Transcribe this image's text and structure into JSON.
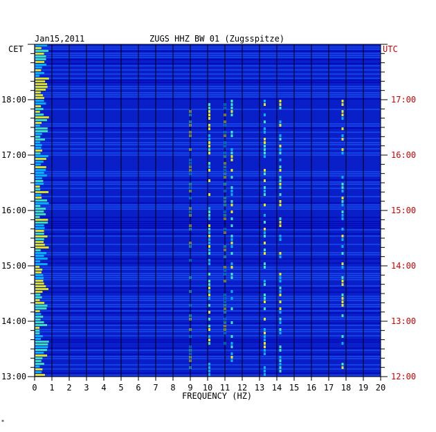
{
  "chart_data": {
    "type": "heatmap",
    "header": {
      "date": "Jan15,2011",
      "station": "ZUGS HHZ BW 01 (Zugsspitze)"
    },
    "left_axis_label": "CET",
    "right_axis_label": "UTC",
    "xlabel": "FREQUENCY (HZ)",
    "xlim": [
      0,
      20
    ],
    "x_ticks": [
      "0",
      "1",
      "2",
      "3",
      "4",
      "5",
      "6",
      "7",
      "8",
      "9",
      "10",
      "11",
      "12",
      "13",
      "14",
      "15",
      "16",
      "17",
      "18",
      "19",
      "20"
    ],
    "time_range_hours": [
      13.0,
      19.0
    ],
    "cet_ticks": [
      {
        "t": 18,
        "label": "18:00"
      },
      {
        "t": 17,
        "label": "17:00"
      },
      {
        "t": 16,
        "label": "16:00"
      },
      {
        "t": 15,
        "label": "15:00"
      },
      {
        "t": 14,
        "label": "14:00"
      },
      {
        "t": 13,
        "label": "13:00"
      }
    ],
    "utc_ticks": [
      {
        "t": 18,
        "label": "17:00"
      },
      {
        "t": 17,
        "label": "16:00"
      },
      {
        "t": 16,
        "label": "15:00"
      },
      {
        "t": 15,
        "label": "14:00"
      },
      {
        "t": 14,
        "label": "13:00"
      },
      {
        "t": 13,
        "label": "12:00"
      }
    ],
    "spectral_lines_hz": [
      9.0,
      10.1,
      11.0,
      11.4,
      13.3,
      14.2,
      17.8
    ],
    "grid": true,
    "colors": {
      "background": "#0a1fc8",
      "grid": "#000000",
      "left_labels": "#000000",
      "right_labels": "#cc0000",
      "colormap": [
        "#0000b0",
        "#0a1fc8",
        "#1e5cff",
        "#00c8ff",
        "#40ffb0",
        "#ffff00",
        "#ff4000",
        "#c00000"
      ]
    }
  },
  "corner_mark": "*"
}
